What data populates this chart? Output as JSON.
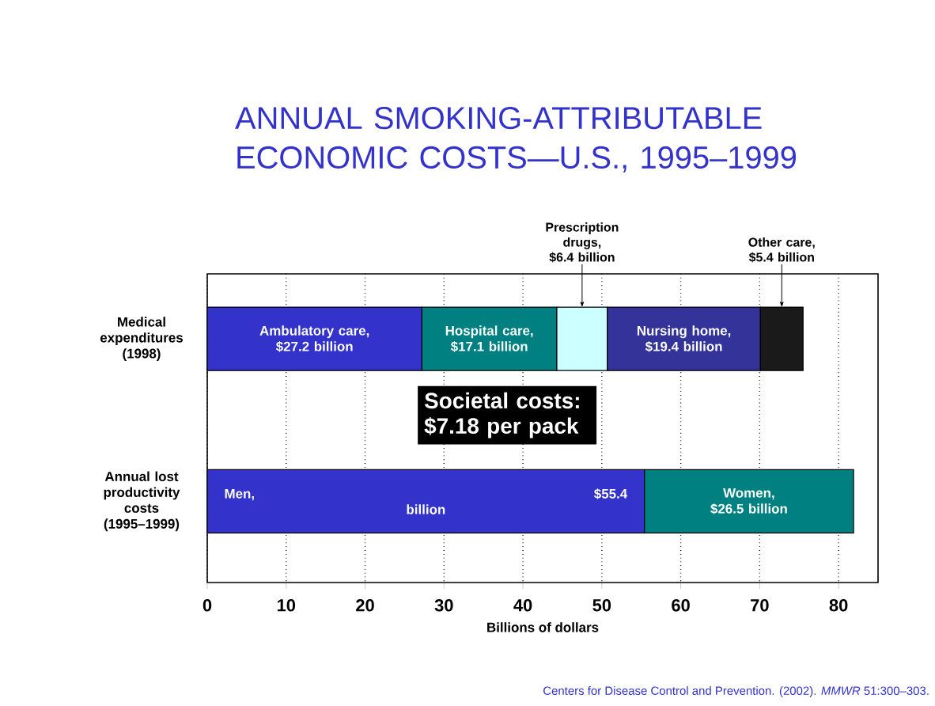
{
  "chart_data": {
    "type": "bar",
    "orientation": "horizontal",
    "stacked": true,
    "title": "ANNUAL SMOKING-ATTRIBUTABLE ECONOMIC COSTS—U.S., 1995–1999",
    "xlabel": "Billions of dollars",
    "categories": [
      "Medical expenditures (1998)",
      "Annual lost productivity costs (1995–1999)"
    ],
    "series": [
      {
        "color": "#3333cc",
        "values": [
          27.2,
          55.4
        ],
        "value_labels": [
          "Ambulatory care, $27.2 billion",
          "Men, $55.4 billion"
        ]
      },
      {
        "color": "#008080",
        "values": [
          17.1,
          26.5
        ],
        "value_labels": [
          "Hospital care, $17.1 billion",
          "Women, $26.5 billion"
        ]
      },
      {
        "color": "#ccffff",
        "values": [
          6.4,
          null
        ],
        "value_labels": [
          "Prescription drugs, $6.4 billion",
          null
        ]
      },
      {
        "color": "#333399",
        "values": [
          19.4,
          null
        ],
        "value_labels": [
          "Nursing home, $19.4 billion",
          null
        ]
      },
      {
        "color": "#1a1a1a",
        "values": [
          5.4,
          null
        ],
        "value_labels": [
          "Other care, $5.4 billion",
          null
        ]
      }
    ],
    "xlim": [
      0,
      85
    ],
    "xticks": [
      0,
      10,
      20,
      30,
      40,
      50,
      60,
      70,
      80
    ],
    "grid": "x",
    "annotations": [
      "Societal costs: $7.18 per pack",
      "Centers for Disease Control and Prevention. (2002). *MMWR* 51:300–303."
    ]
  }
}
